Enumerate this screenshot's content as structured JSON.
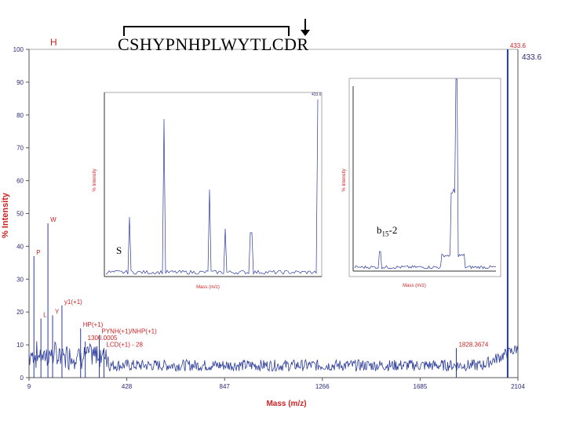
{
  "sequence": "CSHYPNHPLWYTLCDR",
  "main_chart": {
    "xlabel": "Mass (m/z)",
    "ylabel": "% Intensity",
    "x_ticks": [
      "9",
      "428",
      "847",
      "1266",
      "1685",
      "2104"
    ],
    "y_ticks": [
      "0",
      "10",
      "20",
      "30",
      "40",
      "50",
      "60",
      "70",
      "80",
      "90",
      "100"
    ],
    "top_right_label": "433.6"
  },
  "inset_left": {
    "xlabel": "Mass (m/z)",
    "ylabel": "% Intensity",
    "corner_label": "S",
    "top_right_label": "433.6"
  },
  "inset_right": {
    "xlabel": "Mass (m/z)",
    "ylabel": "% Intensity",
    "fragment_label": "b",
    "fragment_sub": "15",
    "fragment_suffix": "-2"
  },
  "chart_data": [
    {
      "type": "line",
      "xlabel": "Mass (m/z)",
      "ylabel": "% Intensity",
      "xlim": [
        9,
        2104
      ],
      "ylim": [
        0,
        100
      ],
      "x_ticks": [
        9,
        428,
        847,
        1266,
        1685,
        2104
      ],
      "y_ticks": [
        0,
        10,
        20,
        30,
        40,
        50,
        60,
        70,
        80,
        90,
        100
      ],
      "peaks": [
        {
          "x": 30,
          "y": 37,
          "label": "P"
        },
        {
          "x": 60,
          "y": 18,
          "label": "L"
        },
        {
          "x": 90,
          "y": 47,
          "label": "W"
        },
        {
          "x": 110,
          "y": 19,
          "label": "Y"
        },
        {
          "x": 150,
          "y": 22,
          "label": "y1(+1)"
        },
        {
          "x": 230,
          "y": 15,
          "label": "HP(+1)"
        },
        {
          "x": 250,
          "y": 11,
          "label": "1300.0005"
        },
        {
          "x": 310,
          "y": 13,
          "label": "PYNH(+1)/NHP(+1)"
        },
        {
          "x": 330,
          "y": 9,
          "label": "LCD(+1) - 28"
        },
        {
          "x": 1840,
          "y": 9,
          "label": "1828.3674"
        },
        {
          "x": 2060,
          "y": 100,
          "label": "433.6"
        }
      ]
    }
  ]
}
